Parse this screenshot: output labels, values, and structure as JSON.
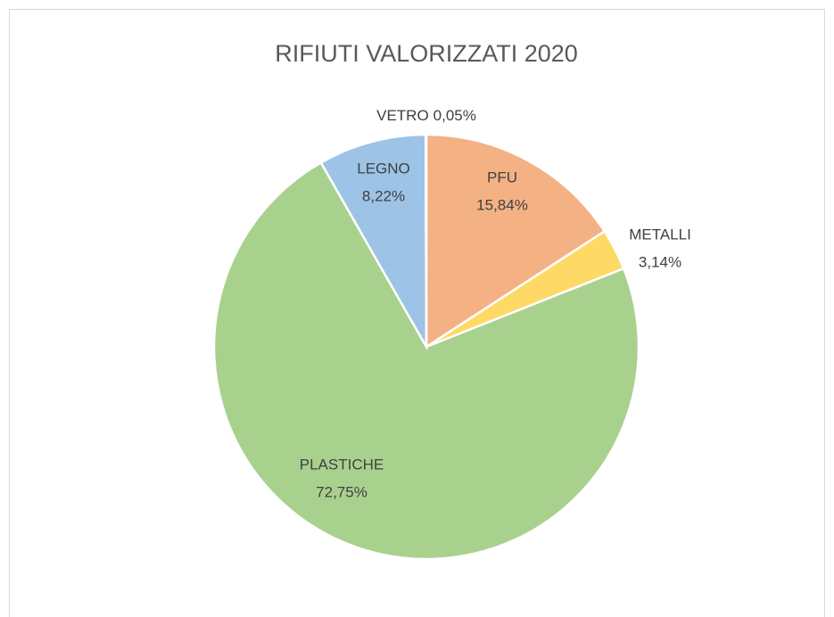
{
  "chart_data": {
    "type": "pie",
    "title": "RIFIUTI VALORIZZATI 2020",
    "categories": [
      "PFU",
      "METALLI",
      "PLASTICHE",
      "LEGNO",
      "VETRO"
    ],
    "values": [
      15.84,
      3.14,
      72.75,
      8.22,
      0.05
    ],
    "value_labels": [
      "15,84%",
      "3,14%",
      "72,75%",
      "8,22%",
      "0,05%"
    ],
    "colors": [
      "#f4b183",
      "#ffd966",
      "#a9d18e",
      "#9dc3e6",
      "#c9c9c9"
    ]
  }
}
